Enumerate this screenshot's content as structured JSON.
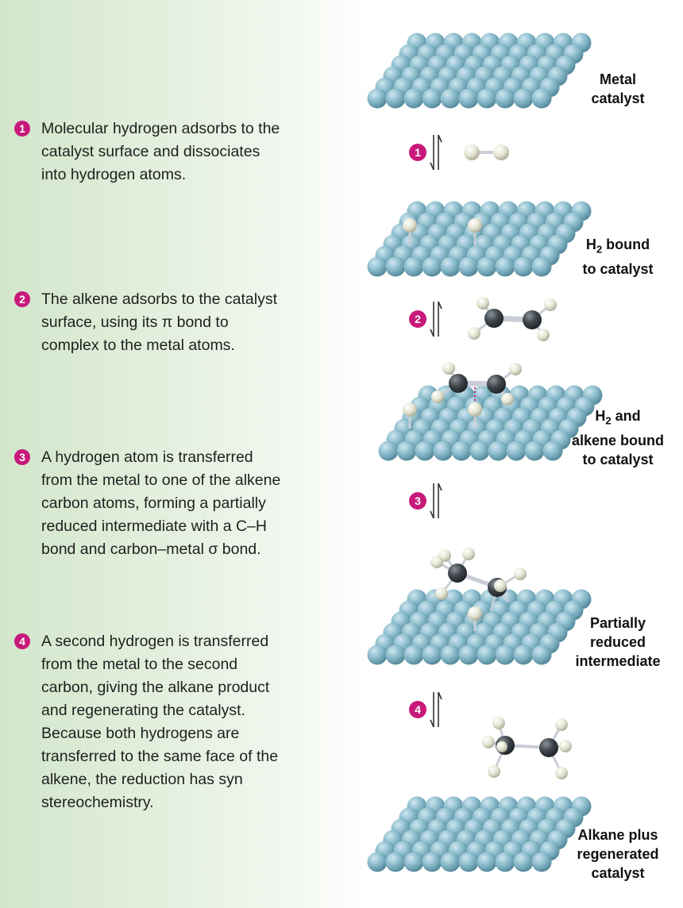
{
  "steps": [
    {
      "num": "1",
      "text": "Molecular hydrogen adsorbs to the\ncatalyst surface and dissociates\ninto hydrogen atoms."
    },
    {
      "num": "2",
      "text": "The alkene adsorbs to the catalyst\nsurface, using its π bond to\ncomplex to the metal atoms."
    },
    {
      "num": "3",
      "text": "A hydrogen atom is transferred\nfrom the metal to one of the alkene\ncarbon atoms, forming a partially\nreduced intermediate with a C–H\nbond and carbon–metal σ bond."
    },
    {
      "num": "4",
      "text": "A second hydrogen is transferred\nfrom the metal to the second\ncarbon, giving the alkane product\nand regenerating the catalyst.\nBecause both hydrogens are\ntransferred to the same face of the\nalkene, the reduction has syn\nstereochemistry."
    }
  ],
  "labels": {
    "metal_catalyst": "Metal\ncatalyst",
    "h2_bound_prefix": "H",
    "h2_bound_sub": "2",
    "h2_bound_rest": " bound\nto catalyst",
    "h2_alkene_prefix": "H",
    "h2_alkene_sub": "2",
    "h2_alkene_rest": " and\nalkene bound\nto catalyst",
    "partially_reduced": "Partially\nreduced\nintermediate",
    "alkane_regen": "Alkane plus\nregenerated\ncatalyst"
  },
  "arrow_badges": [
    "1",
    "2",
    "3",
    "4"
  ],
  "colors": {
    "badge": "#c8197a",
    "metal_atom": "#7fb3c4",
    "hydrogen_atom": "#e6e6d8",
    "carbon_atom": "#3a4046",
    "bond": "#c9ced6"
  }
}
